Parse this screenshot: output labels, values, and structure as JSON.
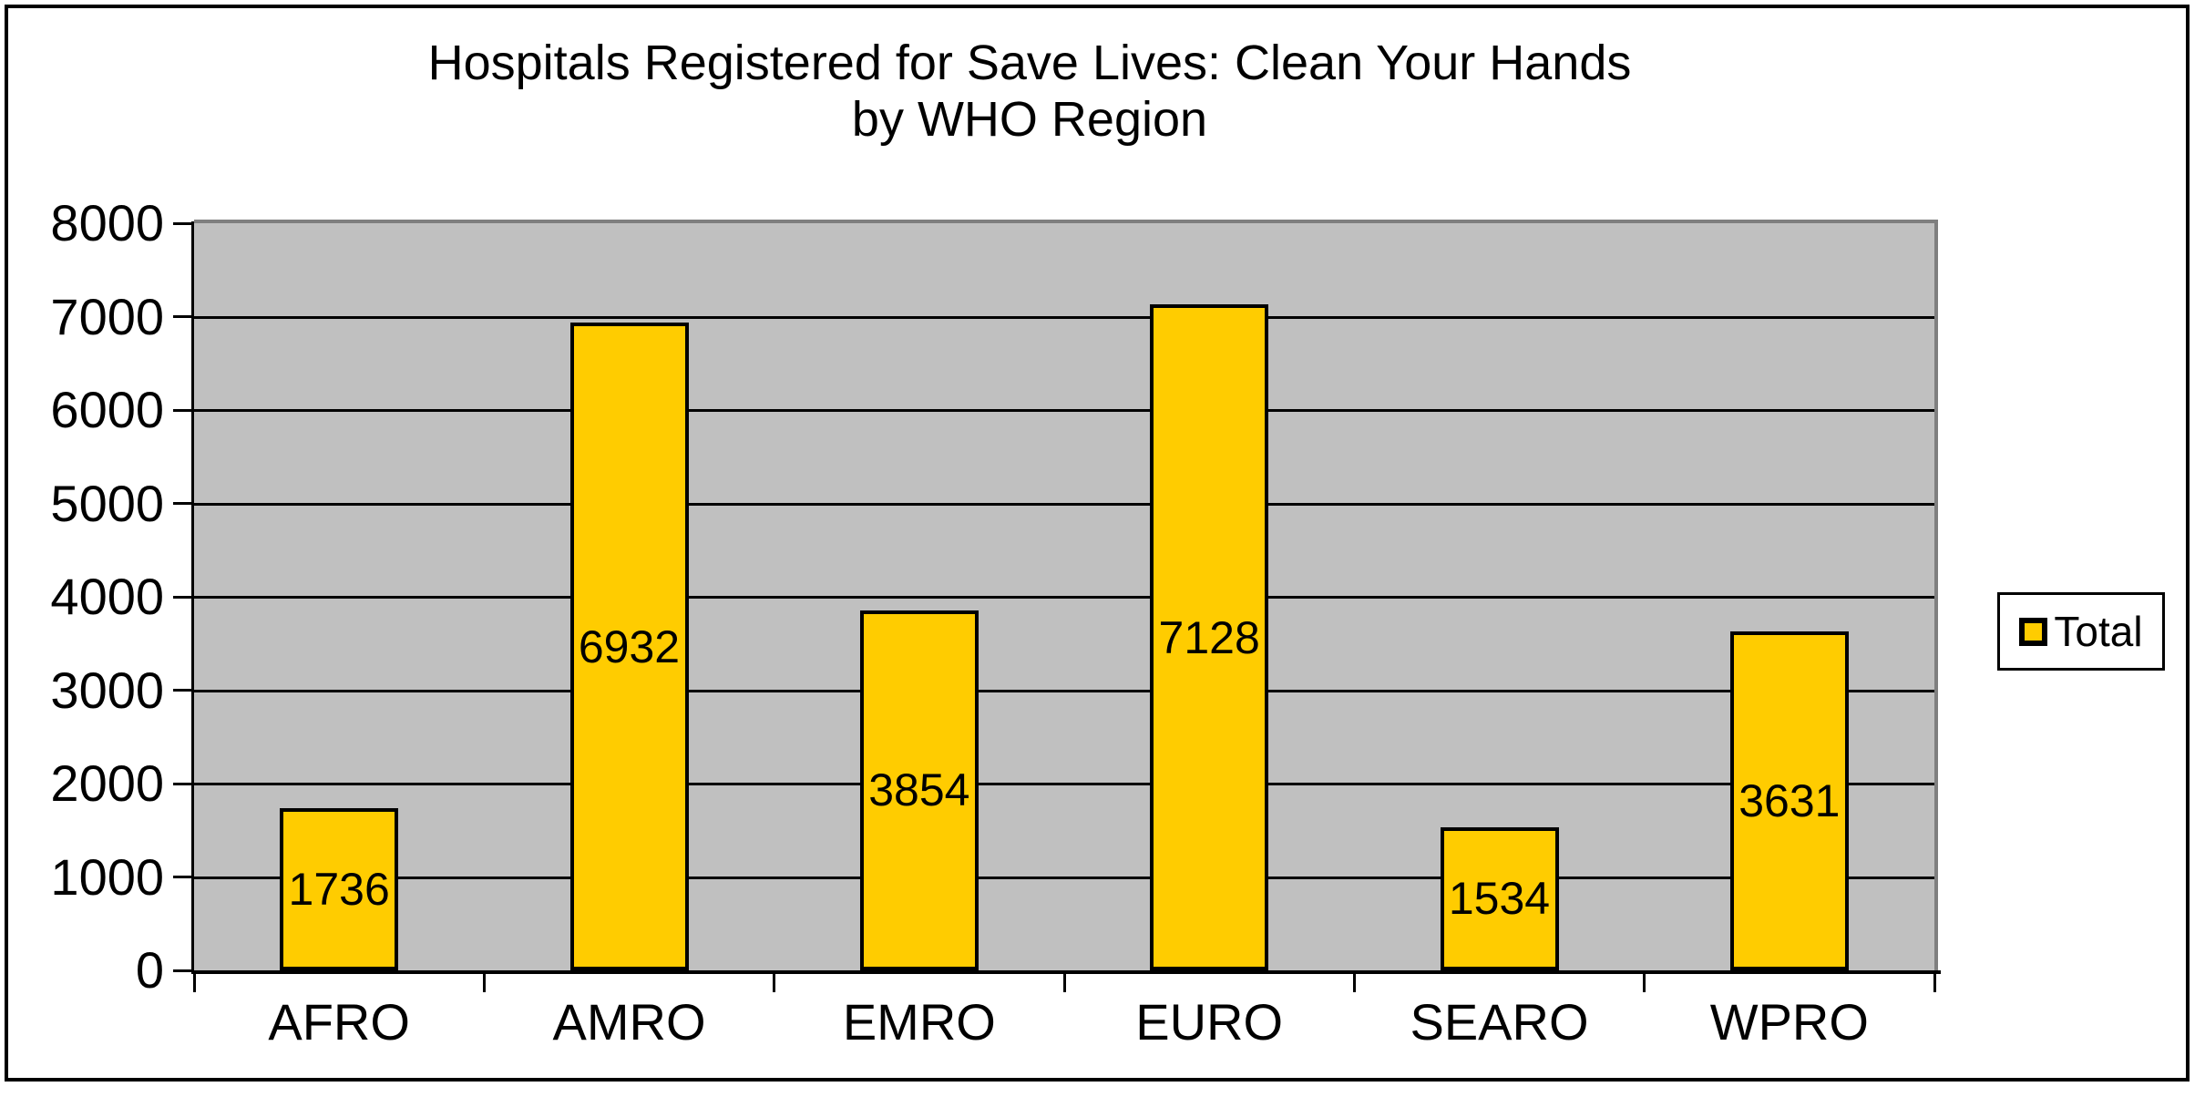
{
  "chart_data": {
    "type": "bar",
    "title": "Hospitals Registered for Save Lives: Clean Your Hands by WHO Region",
    "title_lines": [
      "Hospitals Registered for Save Lives: Clean Your Hands",
      "by WHO Region"
    ],
    "categories": [
      "AFRO",
      "AMRO",
      "EMRO",
      "EURO",
      "SEARO",
      "WPRO"
    ],
    "series": [
      {
        "name": "Total",
        "values": [
          1736,
          6932,
          3854,
          7128,
          1534,
          3631
        ]
      }
    ],
    "data_labels": [
      1736,
      6932,
      3854,
      7128,
      1534,
      3631
    ],
    "xlabel": "",
    "ylabel": "",
    "ylim": [
      0,
      8000
    ],
    "ytick_step": 1000,
    "ytick_labels": [
      "0",
      "1000",
      "2000",
      "3000",
      "4000",
      "5000",
      "6000",
      "7000",
      "8000"
    ],
    "grid": "horizontal-major",
    "legend_position": "right",
    "legend_entries": [
      "Total"
    ],
    "colors": {
      "bar_fill": "#FFCC00",
      "bar_border": "#000000",
      "plot_background": "#C0C0C0",
      "plot_border": "#7F7F7F",
      "gridline": "#000000",
      "axis": "#000000",
      "text": "#000000",
      "chart_background": "#FFFFFF",
      "chart_border": "#000000"
    }
  }
}
